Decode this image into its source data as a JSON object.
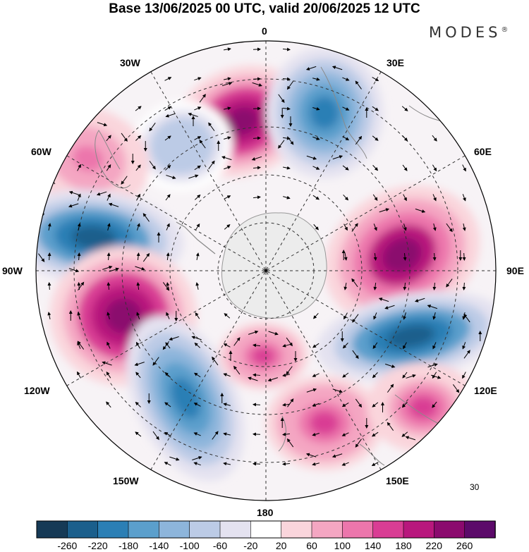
{
  "title": "Base 13/06/2025 00 UTC, valid 20/06/2025 12 UTC",
  "brand": "MODES",
  "brand_mark": "®",
  "longitude_labels": {
    "lon_0": "0",
    "lon_30e": "30E",
    "lon_60e": "60E",
    "lon_90e": "90E",
    "lon_120e": "120E",
    "lon_150e": "150E",
    "lon_180": "180",
    "lon_150w": "150W",
    "lon_120w": "120W",
    "lon_90w": "90W",
    "lon_60w": "60W",
    "lon_30w": "30W"
  },
  "reference_vector": {
    "value": "30"
  },
  "colorbar": {
    "ticks": [
      "-260",
      "-220",
      "-180",
      "-140",
      "-100",
      "-60",
      "-20",
      "20",
      "60",
      "100",
      "140",
      "180",
      "220",
      "260"
    ],
    "colors": [
      "#163a56",
      "#1b5f8c",
      "#2b7fb5",
      "#5b9fcc",
      "#8db5db",
      "#bccbe6",
      "#e4e2f0",
      "#ffffff",
      "#fad5dc",
      "#f4a6c2",
      "#ec76ac",
      "#d93d94",
      "#b8177d",
      "#8b0a6e",
      "#5c0a6a"
    ]
  },
  "anomaly_centers": [
    {
      "sign": "positive",
      "intensity": 240
    },
    {
      "sign": "negative",
      "intensity": -200
    },
    {
      "sign": "negative",
      "intensity": -100
    },
    {
      "sign": "positive",
      "intensity": 100
    },
    {
      "sign": "negative",
      "intensity": -250
    },
    {
      "sign": "positive",
      "intensity": 240
    },
    {
      "sign": "negative",
      "intensity": -220
    },
    {
      "sign": "positive",
      "intensity": 150
    },
    {
      "sign": "positive",
      "intensity": 230
    },
    {
      "sign": "negative",
      "intensity": -240
    },
    {
      "sign": "positive",
      "intensity": 150
    },
    {
      "sign": "positive",
      "intensity": 140
    }
  ]
}
